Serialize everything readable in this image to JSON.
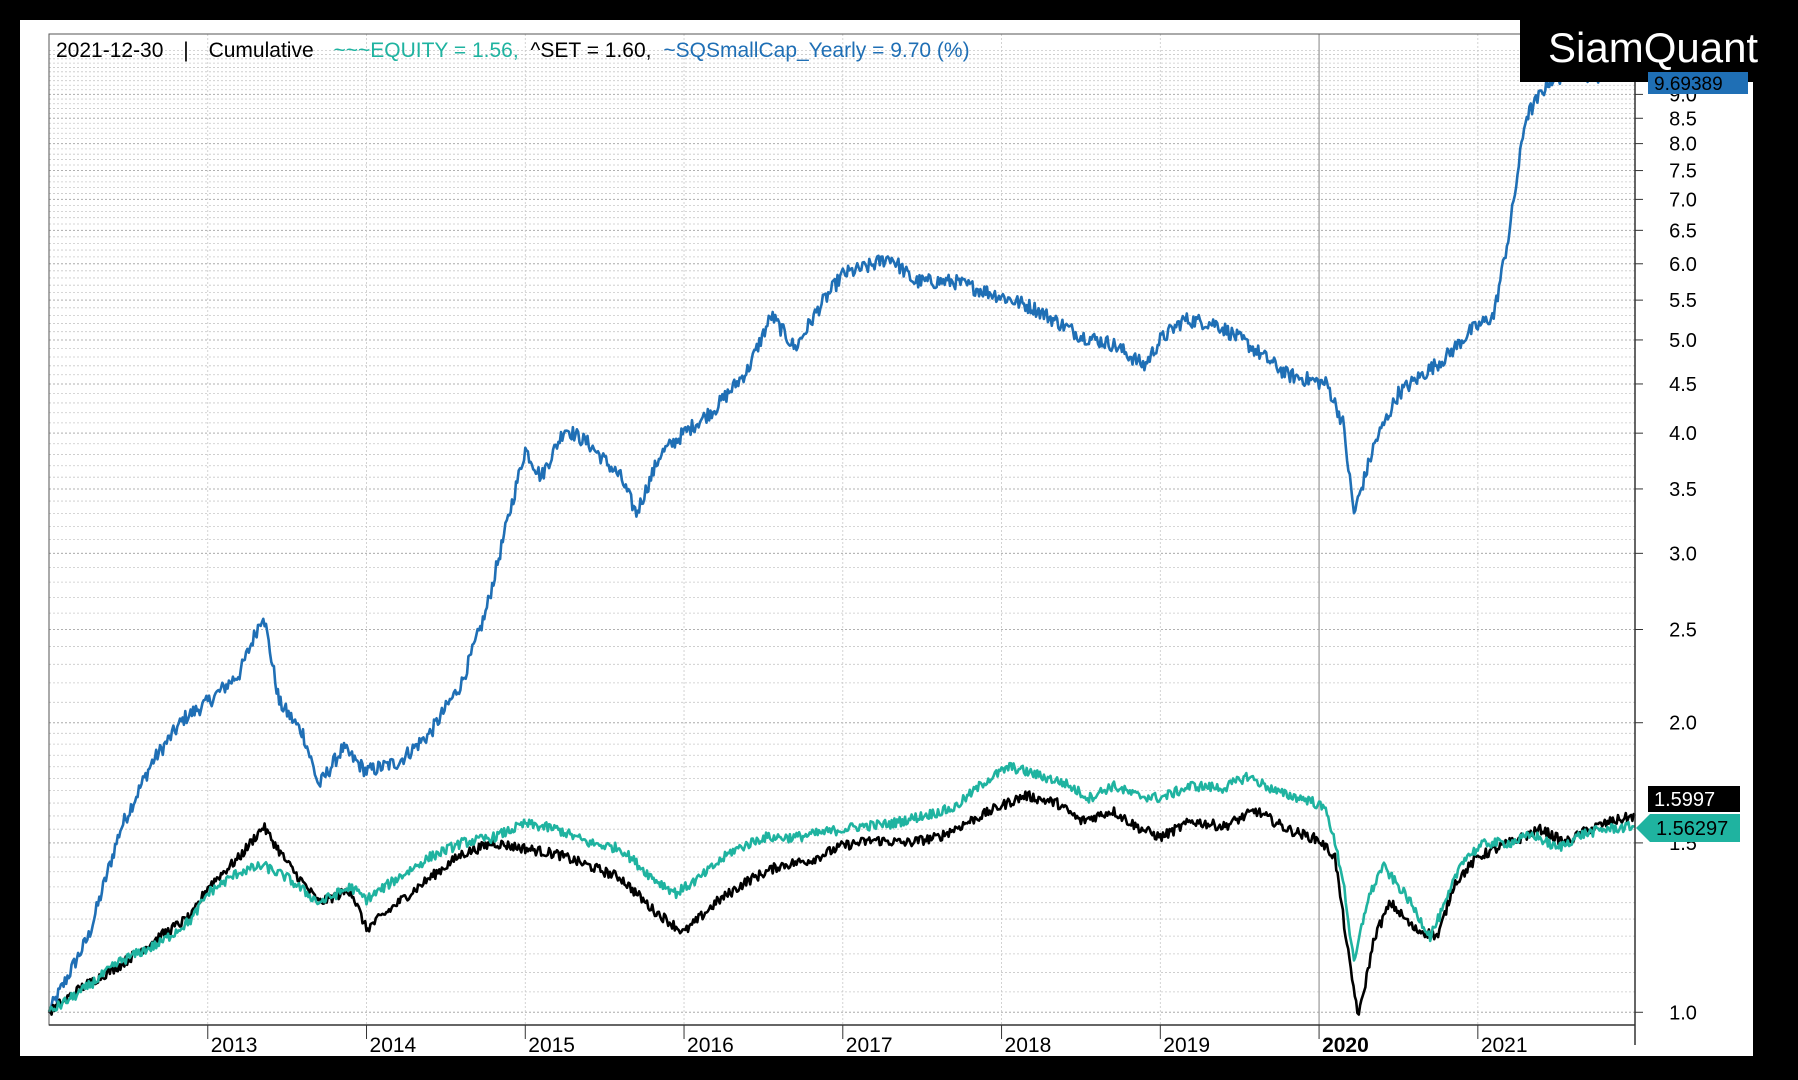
{
  "header": {
    "date": "2021-12-30",
    "separator": "|",
    "mode": "Cumulative",
    "equity_label": "~~~EQUITY = 1.56,",
    "set_label": "^SET = 1.60,",
    "smallcap_label": "~SQSmallCap_Yearly = 9.70 (%)"
  },
  "brand": "SiamQuant",
  "colors": {
    "smallcap": "#1f6fb5",
    "equity": "#1fb3a0",
    "set": "#000000",
    "background": "#ffffff",
    "frame": "#000000"
  },
  "price_tags": {
    "smallcap": "9.69389",
    "set": "1.5997",
    "equity": "1.56297"
  },
  "chart_data": {
    "type": "line",
    "y_scale": "log",
    "ylim": [
      0.97,
      10.4
    ],
    "xlim": [
      2012.0,
      2021.99
    ],
    "grid": true,
    "x_ticks": [
      {
        "x": 2013.0,
        "label": "2013",
        "bold": false
      },
      {
        "x": 2014.0,
        "label": "2014",
        "bold": false
      },
      {
        "x": 2015.0,
        "label": "2015",
        "bold": false
      },
      {
        "x": 2016.0,
        "label": "2016",
        "bold": false
      },
      {
        "x": 2017.0,
        "label": "2017",
        "bold": false
      },
      {
        "x": 2018.0,
        "label": "2018",
        "bold": false
      },
      {
        "x": 2019.0,
        "label": "2019",
        "bold": false
      },
      {
        "x": 2020.0,
        "label": "2020",
        "bold": true
      },
      {
        "x": 2021.0,
        "label": "2021",
        "bold": false
      }
    ],
    "y_ticks": [
      {
        "v": 1.0,
        "label": "1.0"
      },
      {
        "v": 1.5,
        "label": "1.5"
      },
      {
        "v": 2.0,
        "label": "2.0"
      },
      {
        "v": 2.5,
        "label": "2.5"
      },
      {
        "v": 3.0,
        "label": "3.0"
      },
      {
        "v": 3.5,
        "label": "3.5"
      },
      {
        "v": 4.0,
        "label": "4.0"
      },
      {
        "v": 4.5,
        "label": "4.5"
      },
      {
        "v": 5.0,
        "label": "5.0"
      },
      {
        "v": 5.5,
        "label": "5.5"
      },
      {
        "v": 6.0,
        "label": "6.0"
      },
      {
        "v": 6.5,
        "label": "6.5"
      },
      {
        "v": 7.0,
        "label": "7.0"
      },
      {
        "v": 7.5,
        "label": "7.5"
      },
      {
        "v": 8.0,
        "label": "8.0"
      },
      {
        "v": 8.5,
        "label": "8.5"
      },
      {
        "v": 9.0,
        "label": "9.0"
      }
    ],
    "series": [
      {
        "name": "~SQSmallCap_Yearly",
        "key": "smallcap",
        "points": [
          [
            2012.0,
            1.0
          ],
          [
            2012.25,
            1.2
          ],
          [
            2012.45,
            1.55
          ],
          [
            2012.65,
            1.82
          ],
          [
            2012.85,
            2.02
          ],
          [
            2013.0,
            2.1
          ],
          [
            2013.2,
            2.25
          ],
          [
            2013.35,
            2.6
          ],
          [
            2013.45,
            2.1
          ],
          [
            2013.6,
            1.95
          ],
          [
            2013.7,
            1.72
          ],
          [
            2013.85,
            1.88
          ],
          [
            2014.0,
            1.78
          ],
          [
            2014.2,
            1.82
          ],
          [
            2014.4,
            1.95
          ],
          [
            2014.6,
            2.2
          ],
          [
            2014.75,
            2.6
          ],
          [
            2014.9,
            3.3
          ],
          [
            2015.0,
            3.85
          ],
          [
            2015.1,
            3.6
          ],
          [
            2015.25,
            4.05
          ],
          [
            2015.4,
            3.9
          ],
          [
            2015.6,
            3.6
          ],
          [
            2015.7,
            3.3
          ],
          [
            2015.85,
            3.8
          ],
          [
            2016.0,
            4.0
          ],
          [
            2016.2,
            4.25
          ],
          [
            2016.4,
            4.65
          ],
          [
            2016.55,
            5.3
          ],
          [
            2016.7,
            4.9
          ],
          [
            2016.85,
            5.4
          ],
          [
            2017.0,
            5.85
          ],
          [
            2017.15,
            5.95
          ],
          [
            2017.3,
            6.1
          ],
          [
            2017.45,
            5.75
          ],
          [
            2017.7,
            5.75
          ],
          [
            2018.0,
            5.55
          ],
          [
            2018.2,
            5.4
          ],
          [
            2018.5,
            5.05
          ],
          [
            2018.7,
            4.95
          ],
          [
            2018.9,
            4.7
          ],
          [
            2019.0,
            5.0
          ],
          [
            2019.15,
            5.25
          ],
          [
            2019.35,
            5.2
          ],
          [
            2019.55,
            4.95
          ],
          [
            2019.8,
            4.6
          ],
          [
            2020.05,
            4.5
          ],
          [
            2020.15,
            4.1
          ],
          [
            2020.22,
            3.3
          ],
          [
            2020.35,
            3.9
          ],
          [
            2020.5,
            4.4
          ],
          [
            2020.65,
            4.6
          ],
          [
            2020.8,
            4.8
          ],
          [
            2020.95,
            5.1
          ],
          [
            2021.1,
            5.3
          ],
          [
            2021.2,
            6.5
          ],
          [
            2021.3,
            8.5
          ],
          [
            2021.45,
            9.3
          ],
          [
            2021.6,
            9.5
          ],
          [
            2021.75,
            9.4
          ],
          [
            2021.85,
            9.55
          ],
          [
            2021.99,
            9.69
          ]
        ]
      },
      {
        "name": "~~~EQUITY",
        "key": "equity",
        "points": [
          [
            2012.0,
            1.0
          ],
          [
            2012.2,
            1.05
          ],
          [
            2012.45,
            1.13
          ],
          [
            2012.7,
            1.18
          ],
          [
            2012.9,
            1.25
          ],
          [
            2013.0,
            1.33
          ],
          [
            2013.2,
            1.4
          ],
          [
            2013.35,
            1.42
          ],
          [
            2013.5,
            1.38
          ],
          [
            2013.7,
            1.3
          ],
          [
            2013.9,
            1.35
          ],
          [
            2014.0,
            1.31
          ],
          [
            2014.2,
            1.38
          ],
          [
            2014.4,
            1.45
          ],
          [
            2014.6,
            1.5
          ],
          [
            2014.8,
            1.52
          ],
          [
            2015.0,
            1.57
          ],
          [
            2015.2,
            1.55
          ],
          [
            2015.4,
            1.5
          ],
          [
            2015.6,
            1.48
          ],
          [
            2015.8,
            1.38
          ],
          [
            2015.95,
            1.33
          ],
          [
            2016.1,
            1.38
          ],
          [
            2016.3,
            1.47
          ],
          [
            2016.5,
            1.52
          ],
          [
            2016.7,
            1.52
          ],
          [
            2016.9,
            1.54
          ],
          [
            2017.1,
            1.56
          ],
          [
            2017.3,
            1.57
          ],
          [
            2017.5,
            1.6
          ],
          [
            2017.7,
            1.63
          ],
          [
            2017.9,
            1.74
          ],
          [
            2018.05,
            1.8
          ],
          [
            2018.2,
            1.77
          ],
          [
            2018.4,
            1.73
          ],
          [
            2018.55,
            1.67
          ],
          [
            2018.7,
            1.72
          ],
          [
            2018.85,
            1.68
          ],
          [
            2019.0,
            1.67
          ],
          [
            2019.2,
            1.72
          ],
          [
            2019.4,
            1.71
          ],
          [
            2019.55,
            1.76
          ],
          [
            2019.75,
            1.69
          ],
          [
            2019.95,
            1.66
          ],
          [
            2020.05,
            1.62
          ],
          [
            2020.15,
            1.38
          ],
          [
            2020.22,
            1.12
          ],
          [
            2020.3,
            1.3
          ],
          [
            2020.4,
            1.42
          ],
          [
            2020.55,
            1.32
          ],
          [
            2020.7,
            1.2
          ],
          [
            2020.8,
            1.3
          ],
          [
            2020.9,
            1.44
          ],
          [
            2021.05,
            1.5
          ],
          [
            2021.2,
            1.5
          ],
          [
            2021.35,
            1.53
          ],
          [
            2021.5,
            1.48
          ],
          [
            2021.65,
            1.53
          ],
          [
            2021.8,
            1.55
          ],
          [
            2021.99,
            1.56
          ]
        ]
      },
      {
        "name": "^SET",
        "key": "set",
        "points": [
          [
            2012.0,
            1.0
          ],
          [
            2012.2,
            1.06
          ],
          [
            2012.45,
            1.12
          ],
          [
            2012.7,
            1.2
          ],
          [
            2012.9,
            1.26
          ],
          [
            2013.0,
            1.35
          ],
          [
            2013.2,
            1.45
          ],
          [
            2013.35,
            1.56
          ],
          [
            2013.5,
            1.43
          ],
          [
            2013.7,
            1.3
          ],
          [
            2013.9,
            1.34
          ],
          [
            2014.0,
            1.22
          ],
          [
            2014.2,
            1.3
          ],
          [
            2014.4,
            1.38
          ],
          [
            2014.6,
            1.46
          ],
          [
            2014.8,
            1.5
          ],
          [
            2015.0,
            1.48
          ],
          [
            2015.2,
            1.46
          ],
          [
            2015.4,
            1.42
          ],
          [
            2015.6,
            1.38
          ],
          [
            2015.8,
            1.28
          ],
          [
            2016.0,
            1.21
          ],
          [
            2016.2,
            1.3
          ],
          [
            2016.4,
            1.37
          ],
          [
            2016.6,
            1.42
          ],
          [
            2016.8,
            1.44
          ],
          [
            2017.0,
            1.49
          ],
          [
            2017.2,
            1.51
          ],
          [
            2017.4,
            1.5
          ],
          [
            2017.6,
            1.52
          ],
          [
            2017.8,
            1.58
          ],
          [
            2018.0,
            1.64
          ],
          [
            2018.15,
            1.68
          ],
          [
            2018.35,
            1.65
          ],
          [
            2018.5,
            1.58
          ],
          [
            2018.7,
            1.62
          ],
          [
            2018.85,
            1.56
          ],
          [
            2019.0,
            1.52
          ],
          [
            2019.2,
            1.58
          ],
          [
            2019.4,
            1.56
          ],
          [
            2019.6,
            1.62
          ],
          [
            2019.8,
            1.55
          ],
          [
            2020.0,
            1.51
          ],
          [
            2020.1,
            1.45
          ],
          [
            2020.2,
            1.1
          ],
          [
            2020.25,
            0.99
          ],
          [
            2020.35,
            1.2
          ],
          [
            2020.45,
            1.3
          ],
          [
            2020.6,
            1.22
          ],
          [
            2020.75,
            1.2
          ],
          [
            2020.85,
            1.36
          ],
          [
            2021.0,
            1.45
          ],
          [
            2021.2,
            1.5
          ],
          [
            2021.4,
            1.55
          ],
          [
            2021.55,
            1.5
          ],
          [
            2021.7,
            1.55
          ],
          [
            2021.85,
            1.58
          ],
          [
            2021.99,
            1.6
          ]
        ]
      }
    ]
  }
}
